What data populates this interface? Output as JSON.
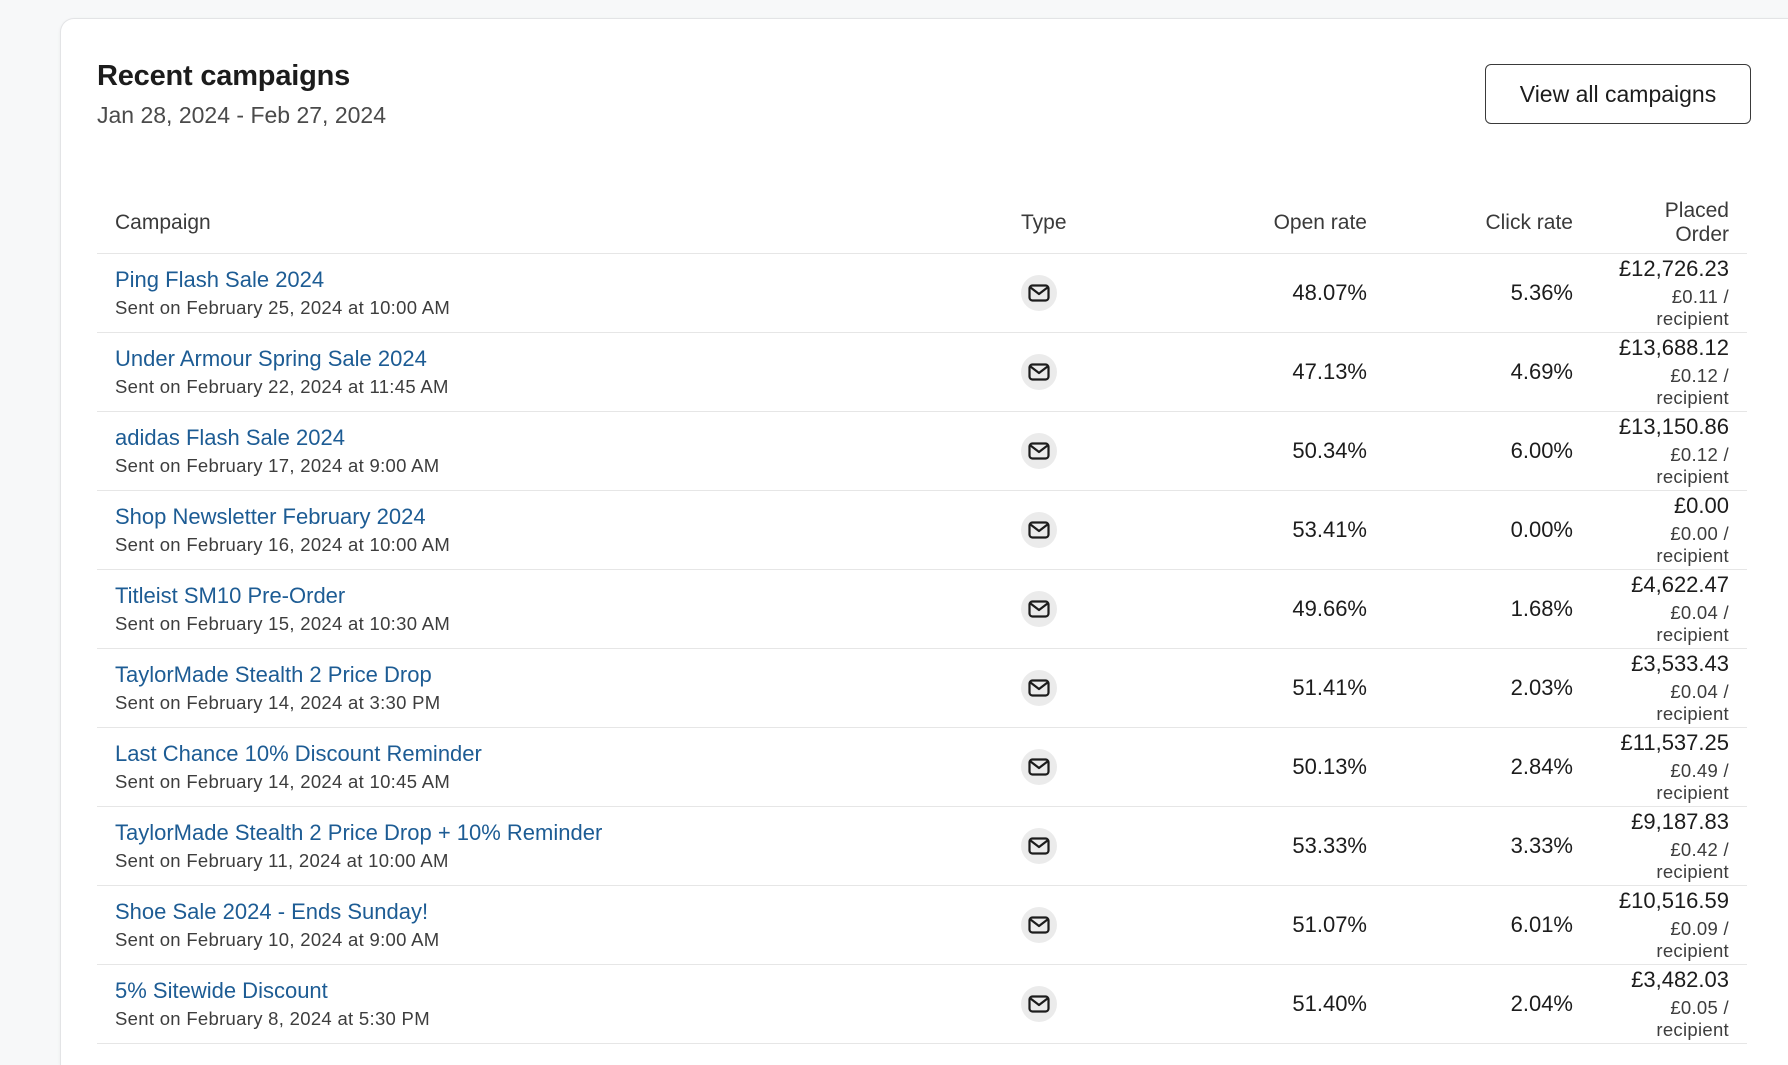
{
  "header": {
    "title": "Recent campaigns",
    "date_range": "Jan 28, 2024 - Feb 27, 2024",
    "view_all_label": "View all campaigns"
  },
  "table": {
    "columns": [
      "Campaign",
      "Type",
      "Open rate",
      "Click rate",
      "Placed Order"
    ],
    "rows": [
      {
        "name": "Ping Flash Sale 2024",
        "sent": "Sent on February 25, 2024 at 10:00 AM",
        "type_icon": "email-icon",
        "open_rate": "48.07%",
        "click_rate": "5.36%",
        "placed_order": "£12,726.23",
        "per_recipient": "£0.11 / recipient"
      },
      {
        "name": "Under Armour Spring Sale 2024",
        "sent": "Sent on February 22, 2024 at 11:45 AM",
        "type_icon": "email-icon",
        "open_rate": "47.13%",
        "click_rate": "4.69%",
        "placed_order": "£13,688.12",
        "per_recipient": "£0.12 / recipient"
      },
      {
        "name": "adidas Flash Sale 2024",
        "sent": "Sent on February 17, 2024 at 9:00 AM",
        "type_icon": "email-icon",
        "open_rate": "50.34%",
        "click_rate": "6.00%",
        "placed_order": "£13,150.86",
        "per_recipient": "£0.12 / recipient"
      },
      {
        "name": "Shop Newsletter February 2024",
        "sent": "Sent on February 16, 2024 at 10:00 AM",
        "type_icon": "email-icon",
        "open_rate": "53.41%",
        "click_rate": "0.00%",
        "placed_order": "£0.00",
        "per_recipient": "£0.00 / recipient"
      },
      {
        "name": "Titleist SM10 Pre-Order",
        "sent": "Sent on February 15, 2024 at 10:30 AM",
        "type_icon": "email-icon",
        "open_rate": "49.66%",
        "click_rate": "1.68%",
        "placed_order": "£4,622.47",
        "per_recipient": "£0.04 / recipient"
      },
      {
        "name": "TaylorMade Stealth 2 Price Drop",
        "sent": "Sent on February 14, 2024 at 3:30 PM",
        "type_icon": "email-icon",
        "open_rate": "51.41%",
        "click_rate": "2.03%",
        "placed_order": "£3,533.43",
        "per_recipient": "£0.04 / recipient"
      },
      {
        "name": "Last Chance 10% Discount Reminder",
        "sent": "Sent on February 14, 2024 at 10:45 AM",
        "type_icon": "email-icon",
        "open_rate": "50.13%",
        "click_rate": "2.84%",
        "placed_order": "£11,537.25",
        "per_recipient": "£0.49 / recipient"
      },
      {
        "name": "TaylorMade Stealth 2 Price Drop + 10% Reminder",
        "sent": "Sent on February 11, 2024 at 10:00 AM",
        "type_icon": "email-icon",
        "open_rate": "53.33%",
        "click_rate": "3.33%",
        "placed_order": "£9,187.83",
        "per_recipient": "£0.42 / recipient"
      },
      {
        "name": "Shoe Sale 2024 - Ends Sunday!",
        "sent": "Sent on February 10, 2024 at 9:00 AM",
        "type_icon": "email-icon",
        "open_rate": "51.07%",
        "click_rate": "6.01%",
        "placed_order": "£10,516.59",
        "per_recipient": "£0.09 / recipient"
      },
      {
        "name": "5% Sitewide Discount",
        "sent": "Sent on February 8, 2024 at 5:30 PM",
        "type_icon": "email-icon",
        "open_rate": "51.40%",
        "click_rate": "2.04%",
        "placed_order": "£3,482.03",
        "per_recipient": "£0.05 / recipient"
      }
    ]
  },
  "colors": {
    "link": "#1d5c94",
    "text": "#1c1c1c",
    "icon_bg": "#ebebeb"
  }
}
